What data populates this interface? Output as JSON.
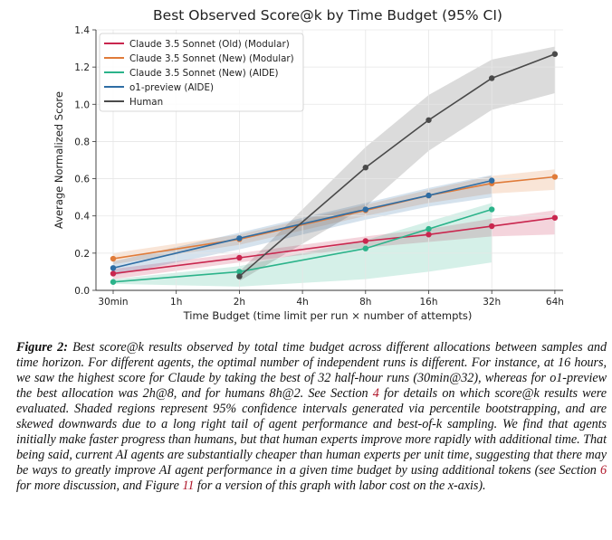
{
  "chart_data": {
    "type": "line",
    "title": "Best Observed Score@k by Time Budget (95% CI)",
    "xlabel": "Time Budget (time limit per run × number of attempts)",
    "ylabel": "Average Normalized Score",
    "categories": [
      "30min",
      "1h",
      "2h",
      "4h",
      "8h",
      "16h",
      "32h",
      "64h"
    ],
    "ylim": [
      0.0,
      1.4
    ],
    "yticks": [
      "0.0",
      "0.2",
      "0.4",
      "0.6",
      "0.8",
      "1.0",
      "1.2",
      "1.4"
    ],
    "ytick_values": [
      0.0,
      0.2,
      0.4,
      0.6,
      0.8,
      1.0,
      1.2,
      1.4
    ],
    "legend_position": "top-left",
    "series": [
      {
        "name": "Claude 3.5 Sonnet (Old) (Modular)",
        "color": "#c9264e",
        "points": [
          [
            0,
            0.09
          ],
          [
            2,
            0.175
          ],
          [
            4,
            0.265
          ],
          [
            5,
            0.3
          ],
          [
            6,
            0.345
          ],
          [
            7,
            0.39
          ]
        ],
        "ci_lower": [
          0.06,
          0.15,
          0.23,
          0.26,
          0.29,
          0.3
        ],
        "ci_upper": [
          0.115,
          0.2,
          0.29,
          0.33,
          0.385,
          0.43
        ]
      },
      {
        "name": "Claude 3.5 Sonnet (New) (Modular)",
        "color": "#e07b39",
        "points": [
          [
            0,
            0.17
          ],
          [
            2,
            0.275
          ],
          [
            4,
            0.43
          ],
          [
            5,
            0.51
          ],
          [
            6,
            0.575
          ],
          [
            7,
            0.61
          ]
        ],
        "ci_lower": [
          0.14,
          0.245,
          0.4,
          0.47,
          0.52,
          0.54
        ],
        "ci_upper": [
          0.2,
          0.3,
          0.46,
          0.54,
          0.615,
          0.65
        ]
      },
      {
        "name": "Claude 3.5 Sonnet (New) (AIDE)",
        "color": "#2bb38a",
        "points": [
          [
            0,
            0.045
          ],
          [
            2,
            0.1
          ],
          [
            4,
            0.225
          ],
          [
            5,
            0.33
          ],
          [
            6,
            0.435
          ]
        ],
        "ci_lower": [
          0.035,
          0.02,
          0.06,
          0.1,
          0.15
        ],
        "ci_upper": [
          0.06,
          0.13,
          0.27,
          0.37,
          0.47
        ]
      },
      {
        "name": "o1-preview (AIDE)",
        "color": "#2e6da4",
        "points": [
          [
            0,
            0.12
          ],
          [
            2,
            0.28
          ],
          [
            4,
            0.435
          ],
          [
            5,
            0.51
          ],
          [
            6,
            0.59
          ]
        ],
        "ci_lower": [
          0.08,
          0.22,
          0.38,
          0.45,
          0.5
        ],
        "ci_upper": [
          0.155,
          0.31,
          0.47,
          0.55,
          0.62
        ]
      },
      {
        "name": "Human",
        "color": "#4a4a4a",
        "points": [
          [
            2,
            0.075
          ],
          [
            4,
            0.66
          ],
          [
            5,
            0.915
          ],
          [
            6,
            1.14
          ],
          [
            7,
            1.27
          ]
        ],
        "ci_lower": [
          0.05,
          0.45,
          0.75,
          0.97,
          1.06
        ],
        "ci_upper": [
          0.1,
          0.77,
          1.05,
          1.24,
          1.31
        ]
      }
    ]
  },
  "caption": {
    "label": "Figure 2:",
    "part1": " Best score@",
    "k1": "k",
    "part2": " results observed by total time budget across different allocations between samples and time horizon. For different agents, the optimal number of independent runs is different. For instance, at 16 hours, we saw the highest score for Claude by taking the best of 32 half-hour runs (30min@32), whereas for o1-preview the best allocation was 2h@8, and for humans 8h@2. See Section ",
    "ref_section4": "4",
    "part3": " for details on which score@",
    "k2": "k",
    "part4": " results were evaluated. Shaded regions represent 95% confidence intervals generated via percentile bootstrapping, and are skewed downwards due to a long right tail of agent performance and best-of-",
    "k3": "k",
    "part5": " sampling. We find that agents initially make faster progress than humans, but that human experts improve more rapidly with additional time. That being said, current AI agents are substantially cheaper than human experts per unit time, suggesting that there may be ways to greatly improve AI agent performance in a given time budget by using additional tokens (see Section ",
    "ref_section6": "6",
    "part6": " for more discussion, and Figure ",
    "ref_figure11": "11",
    "part7": " for a version of this graph with labor cost on the ",
    "xaxis": "x",
    "part8": "-axis)."
  }
}
